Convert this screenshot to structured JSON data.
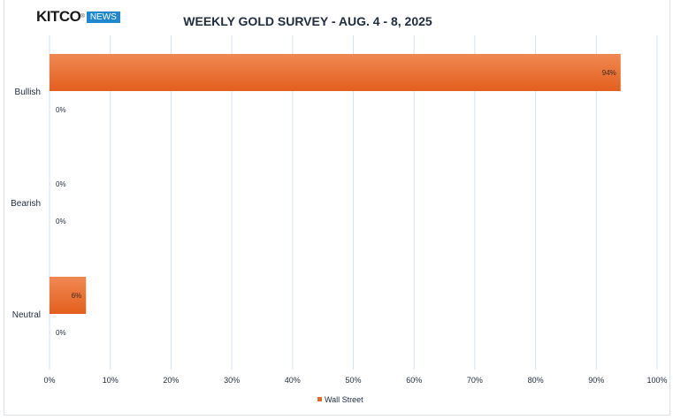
{
  "header": {
    "logo_text": "KITCO",
    "logo_badge": "NEWS",
    "title": "WEEKLY GOLD SURVEY - AUG. 4 - 8, 2025"
  },
  "colors": {
    "bar": "#e8692a",
    "bar_light": "#f08852",
    "grid": "#d4e3f0",
    "text": "#1f2d3d"
  },
  "chart_data": {
    "type": "bar",
    "orientation": "horizontal",
    "title": "WEEKLY GOLD SURVEY - AUG. 4 - 8, 2025",
    "categories": [
      "Bullish",
      "Bearish",
      "Neutral"
    ],
    "series": [
      {
        "name": "Wall Street",
        "values": [
          94,
          0,
          6
        ],
        "labels": [
          "94%",
          "0%",
          "6%"
        ]
      },
      {
        "name": "",
        "values": [
          0,
          0,
          0
        ],
        "labels": [
          "0%",
          "0%",
          "0%"
        ]
      }
    ],
    "xlim": [
      0,
      100
    ],
    "xticks": [
      "0%",
      "10%",
      "20%",
      "30%",
      "40%",
      "50%",
      "60%",
      "70%",
      "80%",
      "90%",
      "100%"
    ],
    "grid": true,
    "legend": {
      "position": "bottom",
      "entries": [
        "Wall Street"
      ]
    }
  }
}
